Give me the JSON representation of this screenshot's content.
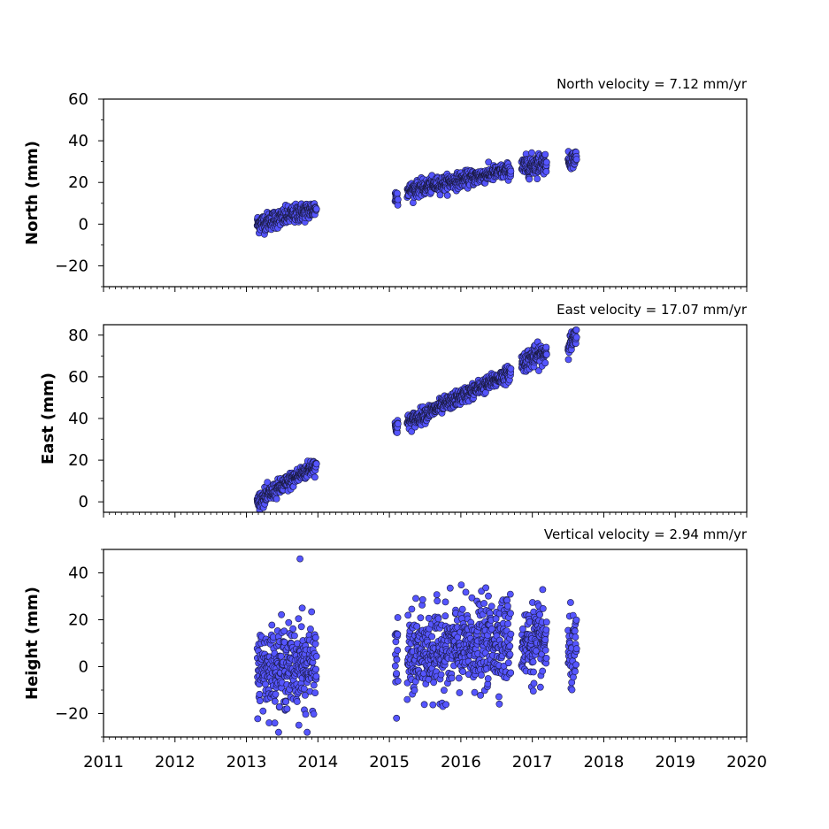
{
  "chart_data": [
    {
      "type": "scatter",
      "title": "North velocity = 7.12 mm/yr",
      "ylabel": "North (mm)",
      "xlabel": "",
      "xlim": [
        2011,
        2020
      ],
      "ylim": [
        -30,
        60
      ],
      "yticks": [
        "60",
        "40",
        "20",
        "0",
        "−20"
      ],
      "ytick_values": [
        60,
        40,
        20,
        0,
        -20
      ],
      "xticks": [
        "2011",
        "2012",
        "2013",
        "2014",
        "2015",
        "2016",
        "2017",
        "2018",
        "2019",
        "2020"
      ],
      "xtick_values": [
        2011,
        2012,
        2013,
        2014,
        2015,
        2016,
        2017,
        2018,
        2019,
        2020
      ],
      "marker_color": "#5555ff",
      "segments": [
        {
          "x_start": 2013.15,
          "x_end": 2013.98,
          "y_start": 0,
          "y_end": 7.5,
          "spread": 2.2
        },
        {
          "x_start": 2015.08,
          "x_end": 2015.12,
          "y_start": 13,
          "y_end": 13.5,
          "spread": 2.0
        },
        {
          "x_start": 2015.25,
          "x_end": 2016.7,
          "y_start": 16,
          "y_end": 26,
          "spread": 1.8
        },
        {
          "x_start": 2016.85,
          "x_end": 2017.2,
          "y_start": 27,
          "y_end": 30,
          "spread": 2.5
        },
        {
          "x_start": 2017.5,
          "x_end": 2017.62,
          "y_start": 30,
          "y_end": 32,
          "spread": 2.0
        }
      ]
    },
    {
      "type": "scatter",
      "title": "East velocity = 17.07 mm/yr",
      "ylabel": "East (mm)",
      "xlabel": "",
      "xlim": [
        2011,
        2020
      ],
      "ylim": [
        -5,
        85
      ],
      "yticks": [
        "80",
        "60",
        "40",
        "20",
        "0"
      ],
      "ytick_values": [
        80,
        60,
        40,
        20,
        0
      ],
      "xticks": [
        "2011",
        "2012",
        "2013",
        "2014",
        "2015",
        "2016",
        "2017",
        "2018",
        "2019",
        "2020"
      ],
      "xtick_values": [
        2011,
        2012,
        2013,
        2014,
        2015,
        2016,
        2017,
        2018,
        2019,
        2020
      ],
      "marker_color": "#5555ff",
      "segments": [
        {
          "x_start": 2013.15,
          "x_end": 2013.98,
          "y_start": 0,
          "y_end": 18,
          "spread": 2.0
        },
        {
          "x_start": 2015.08,
          "x_end": 2015.12,
          "y_start": 35,
          "y_end": 37,
          "spread": 2.0
        },
        {
          "x_start": 2015.25,
          "x_end": 2016.7,
          "y_start": 38,
          "y_end": 62,
          "spread": 1.8
        },
        {
          "x_start": 2016.85,
          "x_end": 2017.2,
          "y_start": 67,
          "y_end": 72,
          "spread": 2.5
        },
        {
          "x_start": 2017.5,
          "x_end": 2017.62,
          "y_start": 75,
          "y_end": 79,
          "spread": 2.2
        }
      ]
    },
    {
      "type": "scatter",
      "title": "Vertical velocity = 2.94 mm/yr",
      "ylabel": "Height (mm)",
      "xlabel": "",
      "xlim": [
        2011,
        2020
      ],
      "ylim": [
        -30,
        50
      ],
      "yticks": [
        "40",
        "20",
        "0",
        "−20"
      ],
      "ytick_values": [
        40,
        20,
        0,
        -20
      ],
      "xticks": [
        "2011",
        "2012",
        "2013",
        "2014",
        "2015",
        "2016",
        "2017",
        "2018",
        "2019",
        "2020"
      ],
      "xtick_values": [
        2011,
        2012,
        2013,
        2014,
        2015,
        2016,
        2017,
        2018,
        2019,
        2020
      ],
      "marker_color": "#5555ff",
      "segments": [
        {
          "x_start": 2013.15,
          "x_end": 2013.98,
          "y_start": 0,
          "y_end": 0,
          "spread": 8.5
        },
        {
          "x_start": 2015.08,
          "x_end": 2015.12,
          "y_start": 5,
          "y_end": 5,
          "spread": 8
        },
        {
          "x_start": 2015.25,
          "x_end": 2016.7,
          "y_start": 4,
          "y_end": 12,
          "spread": 9
        },
        {
          "x_start": 2016.85,
          "x_end": 2017.2,
          "y_start": 10,
          "y_end": 10,
          "spread": 8
        },
        {
          "x_start": 2017.5,
          "x_end": 2017.62,
          "y_start": 5,
          "y_end": 5,
          "spread": 8
        }
      ],
      "outliers": [
        {
          "x": 2013.75,
          "y": 46
        },
        {
          "x": 2013.78,
          "y": 25
        },
        {
          "x": 2013.45,
          "y": -28
        },
        {
          "x": 2013.85,
          "y": -28
        },
        {
          "x": 2015.1,
          "y": -22
        }
      ]
    }
  ]
}
